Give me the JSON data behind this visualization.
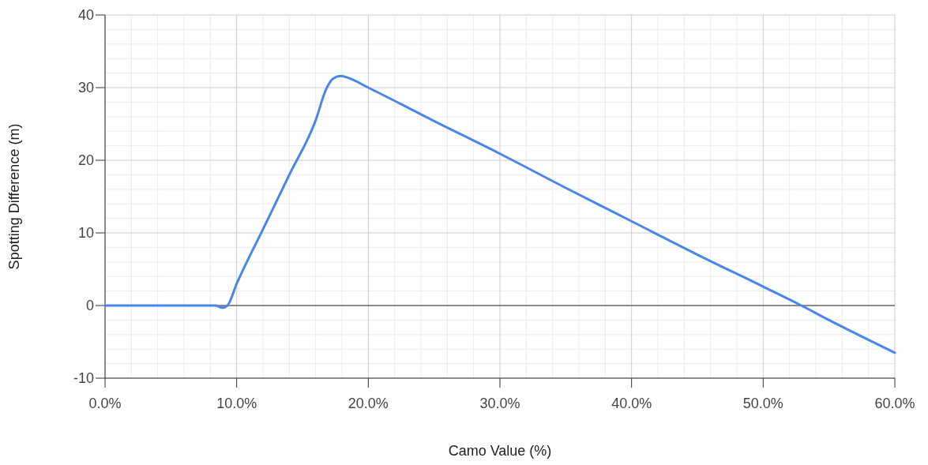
{
  "chart_data": {
    "type": "line",
    "xlabel": "Camo Value (%)",
    "ylabel": "Spotting Difference (m)",
    "series": [
      {
        "color": "#4a86e8",
        "x": [
          0,
          4,
          8.4,
          8.9,
          9.3,
          10,
          12,
          14,
          16,
          16.8,
          17.3,
          17.9,
          18.4,
          20,
          25,
          30,
          35,
          40,
          45,
          50,
          52.9,
          55,
          60
        ],
        "values": [
          0,
          0,
          0,
          -0.3,
          0,
          3,
          10.5,
          18,
          25.5,
          29.8,
          31.2,
          31.6,
          31.4,
          30,
          25.4,
          20.9,
          16.2,
          11.6,
          7,
          2.6,
          0,
          -2,
          -6.5
        ]
      }
    ],
    "xlim": [
      0,
      60
    ],
    "ylim": [
      -10,
      40
    ],
    "xticks": [
      {
        "value": 0,
        "label": "0.0%"
      },
      {
        "value": 10,
        "label": "10.0%"
      },
      {
        "value": 20,
        "label": "20.0%"
      },
      {
        "value": 30,
        "label": "30.0%"
      },
      {
        "value": 40,
        "label": "40.0%"
      },
      {
        "value": 50,
        "label": "50.0%"
      },
      {
        "value": 60,
        "label": "60.0%"
      }
    ],
    "yticks": [
      -10,
      0,
      10,
      20,
      30,
      40
    ],
    "grid": true,
    "marker": "none",
    "line_style": "solid"
  }
}
